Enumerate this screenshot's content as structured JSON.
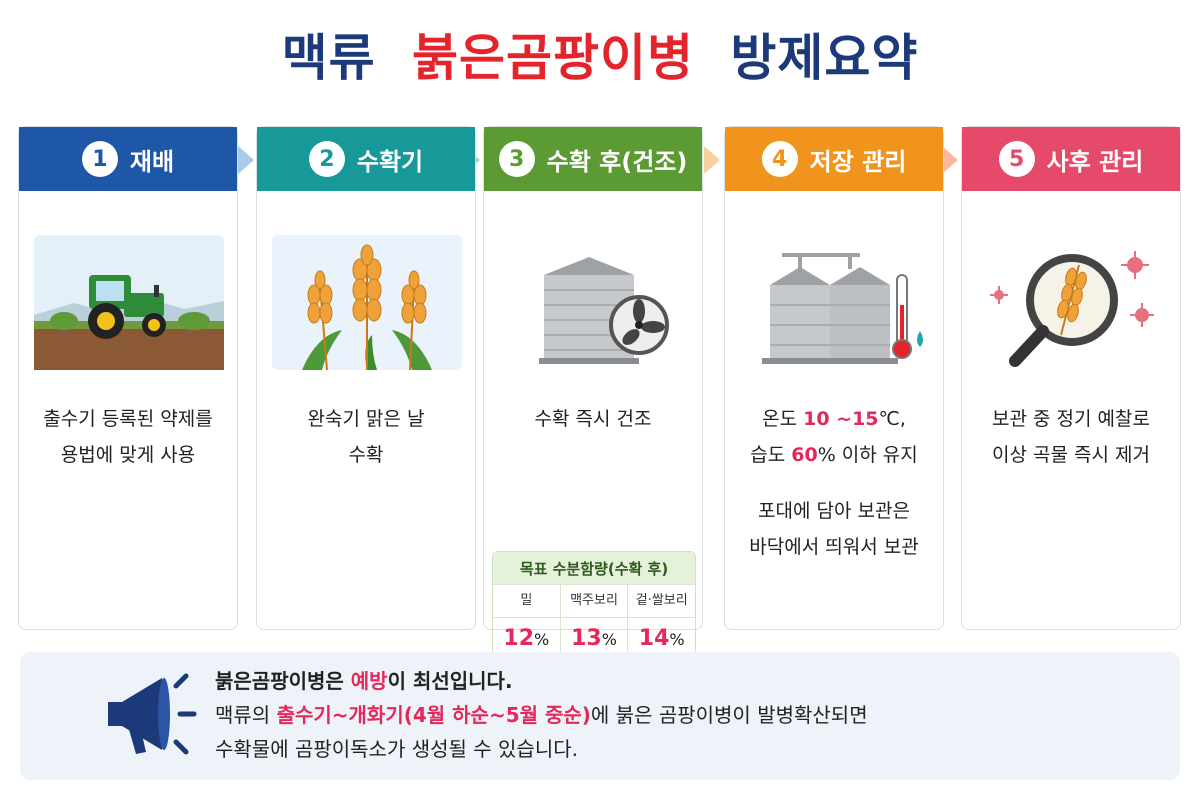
{
  "title": {
    "part1": "맥류",
    "part2": "붉은곰팡이병",
    "part3": "방제요약"
  },
  "colors": {
    "title_navy": "#1c3a7a",
    "title_red": "#e4232b",
    "highlight": "#e4285a",
    "step1": "#1e56a8",
    "step2": "#17999a",
    "step3": "#5c9a34",
    "step4": "#f0941e",
    "step5": "#e64a6a"
  },
  "steps": [
    {
      "number": "1",
      "label": "재배",
      "icon": "tractor-icon",
      "text": [
        "출수기 등록된 약제를",
        "용법에 맞게 사용"
      ]
    },
    {
      "number": "2",
      "label": "수확기",
      "icon": "wheat-icon",
      "text": [
        "완숙기 맑은 날",
        "수확"
      ]
    },
    {
      "number": "3",
      "label": "수확 후(건조)",
      "icon": "silo-fan-icon",
      "text": [
        "수확 즉시 건조"
      ],
      "moisture_table": {
        "header": "목표 수분함량(수확 후)",
        "columns": [
          "밀",
          "맥주보리",
          "겉·쌀보리"
        ],
        "values": [
          "12",
          "13",
          "14"
        ],
        "unit": "%"
      }
    },
    {
      "number": "4",
      "label": "저장 관리",
      "icon": "silo-thermometer-icon",
      "line1": {
        "pre": "온도 ",
        "hl": "10 ~15",
        "post": "℃,"
      },
      "line2": {
        "pre": "습도 ",
        "hl": "60",
        "post": "% 이하 유지"
      },
      "extra": [
        "포대에 담아 보관은",
        "바닥에서 띄워서 보관"
      ]
    },
    {
      "number": "5",
      "label": "사후 관리",
      "icon": "magnifier-icon",
      "text": [
        "보관 중 정기 예찰로",
        "이상 곡물 즉시 제거"
      ]
    }
  ],
  "notice": {
    "icon": "megaphone-icon",
    "line1": {
      "pre": "붉은곰팡이병은 ",
      "hl": "예방",
      "post": "이 최선입니다."
    },
    "line2": {
      "pre": "맥류의 ",
      "hl": "출수기~개화기(4월 하순~5월 중순)",
      "post": "에 붉은 곰팡이병이 발병확산되면"
    },
    "line3": "수확물에 곰팡이독소가 생성될 수 있습니다."
  }
}
